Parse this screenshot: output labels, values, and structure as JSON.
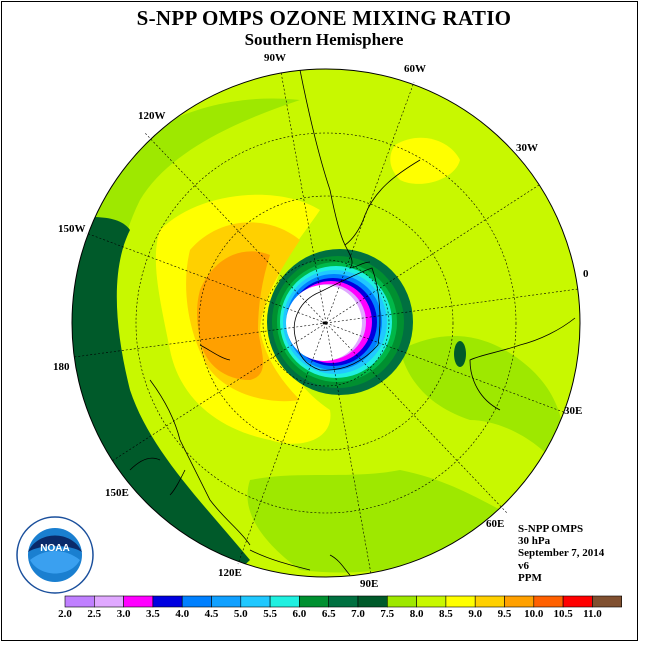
{
  "title": "S-NPP OMPS OZONE MIXING RATIO",
  "subtitle": "Southern Hemisphere",
  "longitude_labels": [
    "0",
    "30W",
    "60W",
    "90W",
    "120W",
    "150W",
    "180",
    "150E",
    "120E",
    "90E",
    "60E",
    "30E"
  ],
  "info": {
    "instrument": "S-NPP OMPS",
    "pressure_level": "30 hPa",
    "date": "September 7, 2014",
    "version": "v6",
    "units": "PPM"
  },
  "logo": {
    "text": "NOAA",
    "ring_text": "NATIONAL OCEANIC AND ATMOSPHERIC ADMINISTRATION U.S. DEPARTMENT OF COMMERCE"
  },
  "colorbar": {
    "levels": [
      "2.0",
      "2.5",
      "3.0",
      "3.5",
      "4.0",
      "4.5",
      "5.0",
      "5.5",
      "6.0",
      "6.5",
      "7.0",
      "7.5",
      "8.0",
      "8.5",
      "9.0",
      "9.5",
      "10.0",
      "10.5",
      "11.0"
    ],
    "colors": [
      "#c080ff",
      "#e0a8ff",
      "#ff00ff",
      "#0000e0",
      "#0080ff",
      "#10a0ff",
      "#20c8ff",
      "#20f0e0",
      "#009030",
      "#007040",
      "#005a2a",
      "#9ee800",
      "#c8f800",
      "#ffff00",
      "#ffd000",
      "#ffa000",
      "#ff6000",
      "#ff0000",
      "#805030"
    ]
  }
}
